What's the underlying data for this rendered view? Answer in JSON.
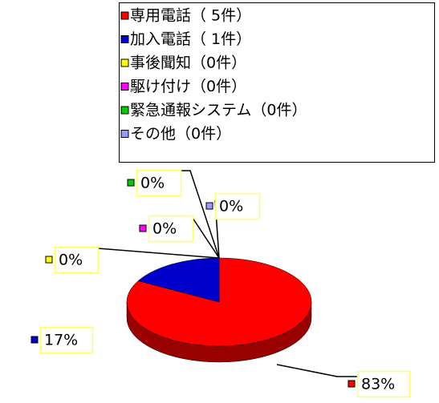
{
  "chart_data": {
    "type": "pie",
    "categories": [
      "専用電話（ 5件）",
      "加入電話（ 1件）",
      "事後聞知（0件）",
      "駆け付け（0件）",
      "緊急通報システム（0件）",
      "その他（0件）"
    ],
    "values": [
      83,
      17,
      0,
      0,
      0,
      0
    ],
    "value_labels": [
      "83%",
      "17%",
      "0%",
      "0%",
      "0%",
      "0%"
    ],
    "colors": [
      "#ff0000",
      "#0000cc",
      "#ffff00",
      "#ff00ff",
      "#00cc00",
      "#9999ff"
    ],
    "legend": "top"
  }
}
